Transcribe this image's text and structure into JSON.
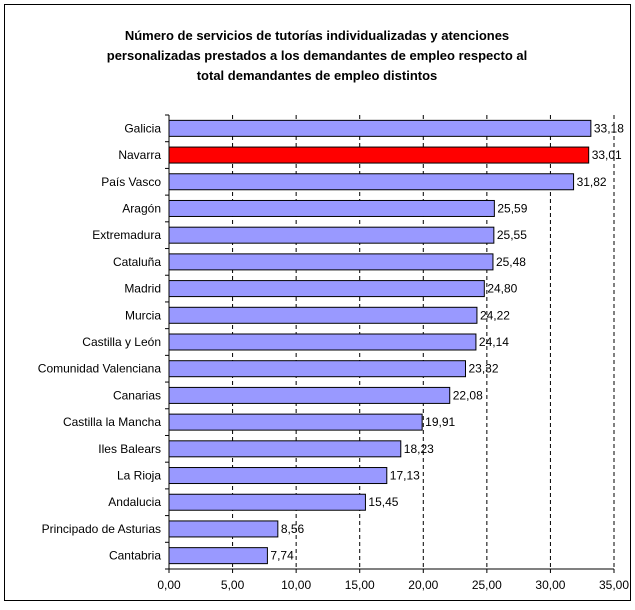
{
  "chart_data": {
    "type": "bar",
    "orientation": "horizontal",
    "title": [
      "Número de servicios de tutorías individualizadas y atenciones",
      "personalizadas prestados a los demandantes de empleo respecto al",
      "total demandantes de empleo distintos"
    ],
    "categories": [
      "Galicia",
      "Navarra",
      "País Vasco",
      "Aragón",
      "Extremadura",
      "Cataluña",
      "Madrid",
      "Murcia",
      "Castilla y León",
      "Comunidad Valenciana",
      "Canarias",
      "Castilla la Mancha",
      "Iles Balears",
      "La Rioja",
      "Andalucia",
      "Principado de Asturias",
      "Cantabria"
    ],
    "values": [
      33.18,
      33.01,
      31.82,
      25.59,
      25.55,
      25.48,
      24.8,
      24.22,
      24.14,
      23.32,
      22.08,
      19.91,
      18.23,
      17.13,
      15.45,
      8.56,
      7.74
    ],
    "value_labels": [
      "33,18",
      "33,01",
      "31,82",
      "25,59",
      "25,55",
      "25,48",
      "24,80",
      "24,22",
      "24,14",
      "23,32",
      "22,08",
      "19,91",
      "18,23",
      "17,13",
      "15,45",
      "8,56",
      "7,74"
    ],
    "highlight_index": 1,
    "xlim": [
      0,
      35
    ],
    "x_ticks": [
      0,
      5,
      10,
      15,
      20,
      25,
      30,
      35
    ],
    "x_tick_labels": [
      "0,00",
      "5,00",
      "10,00",
      "15,00",
      "20,00",
      "25,00",
      "30,00",
      "35,00"
    ],
    "grid": "vertical dashed",
    "legend": "none",
    "colors": {
      "bar": "#9999ff",
      "highlight": "#ff0000",
      "bar_border": "#000000"
    }
  }
}
